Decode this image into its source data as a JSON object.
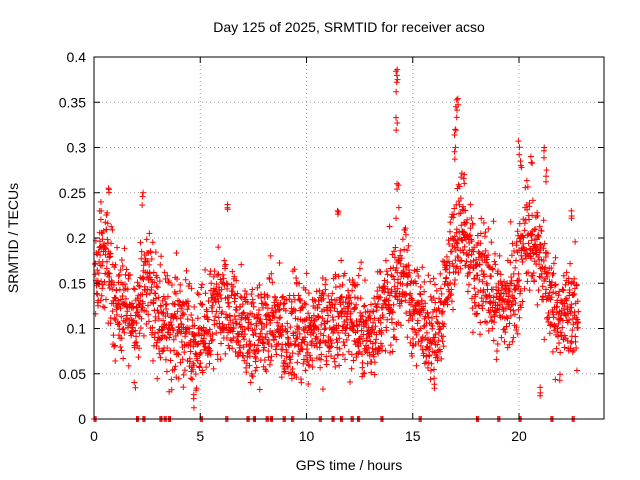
{
  "chart_data": {
    "type": "scatter",
    "title": "Day 125 of 2025, SRMTID for receiver acso",
    "xlabel": "GPS time / hours",
    "ylabel": "SRMTID / TECUs",
    "xlim": [
      0,
      24
    ],
    "ylim": [
      0,
      0.4
    ],
    "x_ticks": [
      0,
      5,
      10,
      15,
      20
    ],
    "x_tick_labels": [
      "0",
      "5",
      "10",
      "15",
      "20"
    ],
    "y_ticks": [
      0,
      0.05,
      0.1,
      0.15,
      0.2,
      0.25,
      0.3,
      0.35,
      0.4
    ],
    "y_tick_labels": [
      "0",
      "0.05",
      "0.1",
      "0.15",
      "0.2",
      "0.25",
      "0.3",
      "0.35",
      "0.4"
    ],
    "grid": true,
    "marker": "plus",
    "series_color": "#ff0000",
    "profile_x": [
      0,
      0.3,
      0.6,
      1.0,
      1.5,
      2.0,
      2.5,
      3.0,
      3.5,
      4.0,
      4.5,
      5.0,
      5.5,
      6.0,
      6.5,
      7.0,
      7.5,
      8.0,
      8.5,
      9.0,
      9.5,
      10.0,
      10.5,
      11.0,
      11.5,
      12.0,
      12.5,
      13.0,
      13.5,
      14.0,
      14.3,
      14.6,
      15.0,
      15.5,
      16.0,
      16.5,
      17.0,
      17.3,
      17.6,
      18.0,
      18.5,
      19.0,
      19.5,
      20.0,
      20.3,
      20.6,
      21.0,
      21.5,
      22.0,
      22.5,
      22.8
    ],
    "profile_y": [
      0.14,
      0.17,
      0.18,
      0.13,
      0.12,
      0.11,
      0.16,
      0.12,
      0.1,
      0.11,
      0.09,
      0.08,
      0.11,
      0.12,
      0.11,
      0.1,
      0.09,
      0.1,
      0.11,
      0.09,
      0.1,
      0.1,
      0.11,
      0.1,
      0.11,
      0.12,
      0.1,
      0.09,
      0.12,
      0.13,
      0.16,
      0.16,
      0.12,
      0.11,
      0.09,
      0.14,
      0.2,
      0.22,
      0.18,
      0.15,
      0.16,
      0.12,
      0.13,
      0.16,
      0.21,
      0.19,
      0.18,
      0.13,
      0.11,
      0.12,
      0.11
    ],
    "peaks": [
      {
        "x": 0.3,
        "y": 0.23
      },
      {
        "x": 0.7,
        "y": 0.255
      },
      {
        "x": 2.3,
        "y": 0.25
      },
      {
        "x": 6.3,
        "y": 0.237
      },
      {
        "x": 11.5,
        "y": 0.23
      },
      {
        "x": 14.25,
        "y": 0.386
      },
      {
        "x": 14.25,
        "y": 0.375
      },
      {
        "x": 14.25,
        "y": 0.333
      },
      {
        "x": 14.3,
        "y": 0.26
      },
      {
        "x": 17.0,
        "y": 0.32
      },
      {
        "x": 17.1,
        "y": 0.354
      },
      {
        "x": 17.05,
        "y": 0.345
      },
      {
        "x": 17.0,
        "y": 0.3
      },
      {
        "x": 17.4,
        "y": 0.27
      },
      {
        "x": 20.0,
        "y": 0.307
      },
      {
        "x": 20.1,
        "y": 0.285
      },
      {
        "x": 20.6,
        "y": 0.29
      },
      {
        "x": 21.2,
        "y": 0.3
      },
      {
        "x": 21.3,
        "y": 0.275
      },
      {
        "x": 22.5,
        "y": 0.23
      },
      {
        "x": 4.7,
        "y": 0.027
      },
      {
        "x": 21.0,
        "y": 0.035
      },
      {
        "x": 16.0,
        "y": 0.045
      }
    ],
    "gap_marks_x": [
      0,
      2.0,
      2.3,
      3.1,
      3.3,
      3.5,
      5.0,
      6.2,
      7.2,
      7.5,
      8.1,
      8.3,
      8.9,
      9.3,
      10.6,
      11.2,
      11.6,
      12.1,
      12.4,
      13.5,
      15.3,
      18.0,
      19.0,
      20.0,
      21.5,
      22.5
    ],
    "gap_marks_y": 0
  }
}
